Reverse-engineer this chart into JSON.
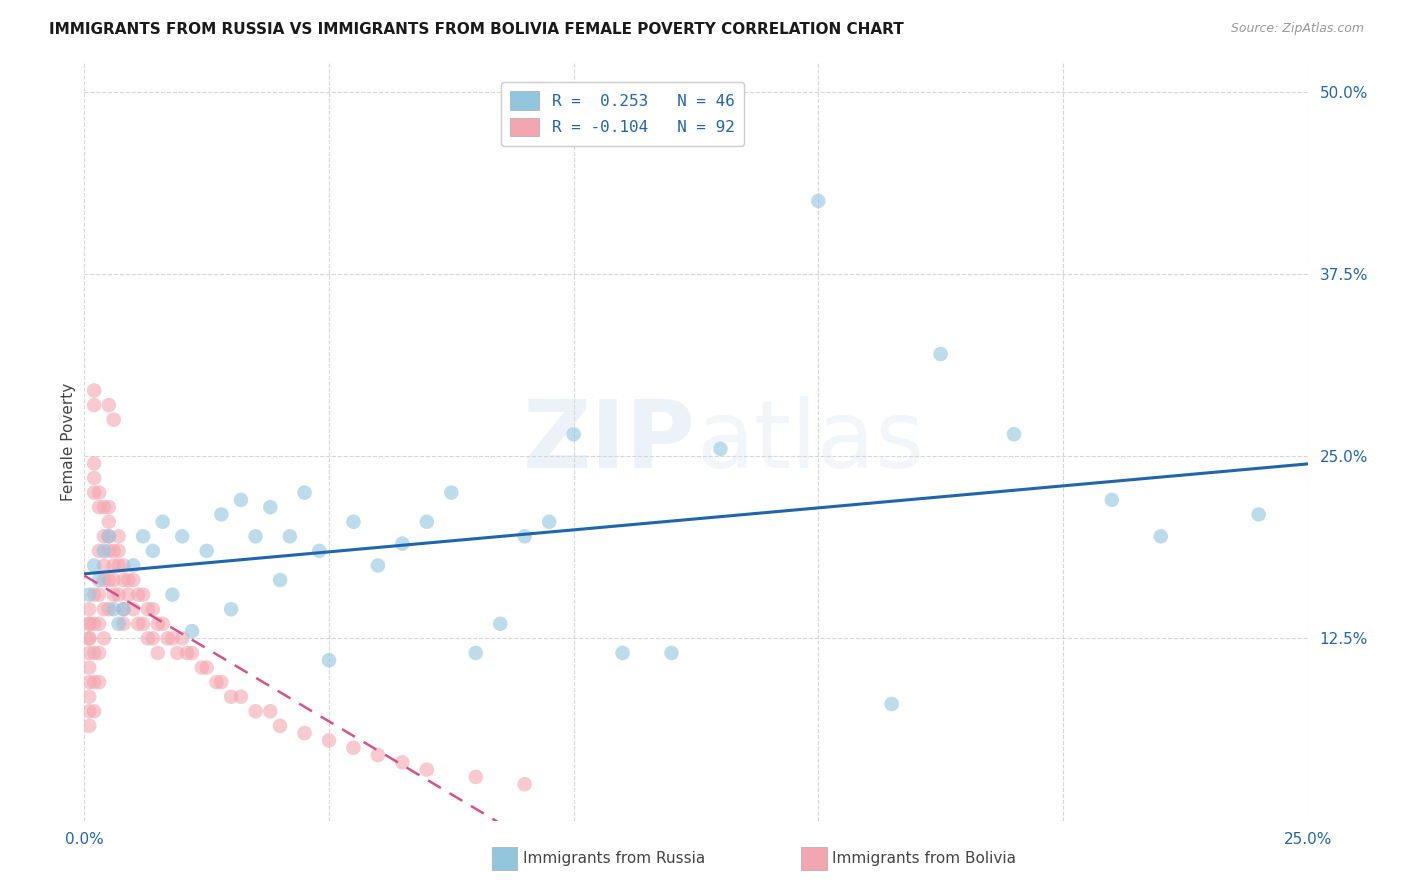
{
  "title": "IMMIGRANTS FROM RUSSIA VS IMMIGRANTS FROM BOLIVIA FEMALE POVERTY CORRELATION CHART",
  "source": "Source: ZipAtlas.com",
  "ylabel": "Female Poverty",
  "x_min": 0.0,
  "x_max": 0.25,
  "y_min": 0.0,
  "y_max": 0.52,
  "russia_R": 0.253,
  "russia_N": 46,
  "bolivia_R": -0.104,
  "bolivia_N": 92,
  "russia_color": "#92c5de",
  "bolivia_color": "#f4a6b0",
  "russia_line_color": "#2166ac",
  "bolivia_line_color": "#d6538a",
  "legend_russia_label": "Immigrants from Russia",
  "legend_bolivia_label": "Immigrants from Bolivia",
  "watermark_zip": "ZIP",
  "watermark_atlas": "atlas",
  "russia_x": [
    0.001,
    0.002,
    0.003,
    0.004,
    0.005,
    0.006,
    0.007,
    0.008,
    0.01,
    0.012,
    0.014,
    0.016,
    0.018,
    0.02,
    0.022,
    0.025,
    0.028,
    0.03,
    0.032,
    0.035,
    0.038,
    0.04,
    0.042,
    0.045,
    0.048,
    0.05,
    0.055,
    0.06,
    0.065,
    0.07,
    0.075,
    0.08,
    0.085,
    0.09,
    0.095,
    0.1,
    0.11,
    0.12,
    0.13,
    0.15,
    0.165,
    0.175,
    0.19,
    0.21,
    0.22,
    0.24
  ],
  "russia_y": [
    0.155,
    0.175,
    0.165,
    0.185,
    0.195,
    0.145,
    0.135,
    0.145,
    0.175,
    0.195,
    0.185,
    0.205,
    0.155,
    0.195,
    0.13,
    0.185,
    0.21,
    0.145,
    0.22,
    0.195,
    0.215,
    0.165,
    0.195,
    0.225,
    0.185,
    0.11,
    0.205,
    0.175,
    0.19,
    0.205,
    0.225,
    0.115,
    0.135,
    0.195,
    0.205,
    0.265,
    0.115,
    0.115,
    0.255,
    0.425,
    0.08,
    0.32,
    0.265,
    0.22,
    0.195,
    0.21
  ],
  "bolivia_x": [
    0.001,
    0.001,
    0.001,
    0.001,
    0.001,
    0.001,
    0.001,
    0.001,
    0.001,
    0.001,
    0.001,
    0.002,
    0.002,
    0.002,
    0.002,
    0.002,
    0.002,
    0.002,
    0.002,
    0.002,
    0.002,
    0.003,
    0.003,
    0.003,
    0.003,
    0.003,
    0.003,
    0.003,
    0.004,
    0.004,
    0.004,
    0.004,
    0.004,
    0.004,
    0.005,
    0.005,
    0.005,
    0.005,
    0.005,
    0.005,
    0.006,
    0.006,
    0.006,
    0.006,
    0.007,
    0.007,
    0.007,
    0.007,
    0.008,
    0.008,
    0.008,
    0.008,
    0.009,
    0.009,
    0.01,
    0.01,
    0.011,
    0.011,
    0.012,
    0.012,
    0.013,
    0.013,
    0.014,
    0.014,
    0.015,
    0.015,
    0.016,
    0.017,
    0.018,
    0.019,
    0.02,
    0.021,
    0.022,
    0.024,
    0.025,
    0.027,
    0.028,
    0.03,
    0.032,
    0.035,
    0.038,
    0.04,
    0.045,
    0.05,
    0.055,
    0.06,
    0.065,
    0.07,
    0.08,
    0.09,
    0.005,
    0.006
  ],
  "bolivia_y": [
    0.135,
    0.125,
    0.115,
    0.105,
    0.145,
    0.135,
    0.125,
    0.095,
    0.085,
    0.075,
    0.065,
    0.235,
    0.245,
    0.285,
    0.295,
    0.225,
    0.155,
    0.135,
    0.115,
    0.095,
    0.075,
    0.225,
    0.215,
    0.185,
    0.155,
    0.135,
    0.115,
    0.095,
    0.215,
    0.195,
    0.175,
    0.165,
    0.145,
    0.125,
    0.215,
    0.205,
    0.195,
    0.185,
    0.165,
    0.145,
    0.185,
    0.175,
    0.165,
    0.155,
    0.195,
    0.185,
    0.175,
    0.155,
    0.175,
    0.165,
    0.145,
    0.135,
    0.165,
    0.155,
    0.165,
    0.145,
    0.155,
    0.135,
    0.155,
    0.135,
    0.145,
    0.125,
    0.145,
    0.125,
    0.135,
    0.115,
    0.135,
    0.125,
    0.125,
    0.115,
    0.125,
    0.115,
    0.115,
    0.105,
    0.105,
    0.095,
    0.095,
    0.085,
    0.085,
    0.075,
    0.075,
    0.065,
    0.06,
    0.055,
    0.05,
    0.045,
    0.04,
    0.035,
    0.03,
    0.025,
    0.285,
    0.275
  ]
}
